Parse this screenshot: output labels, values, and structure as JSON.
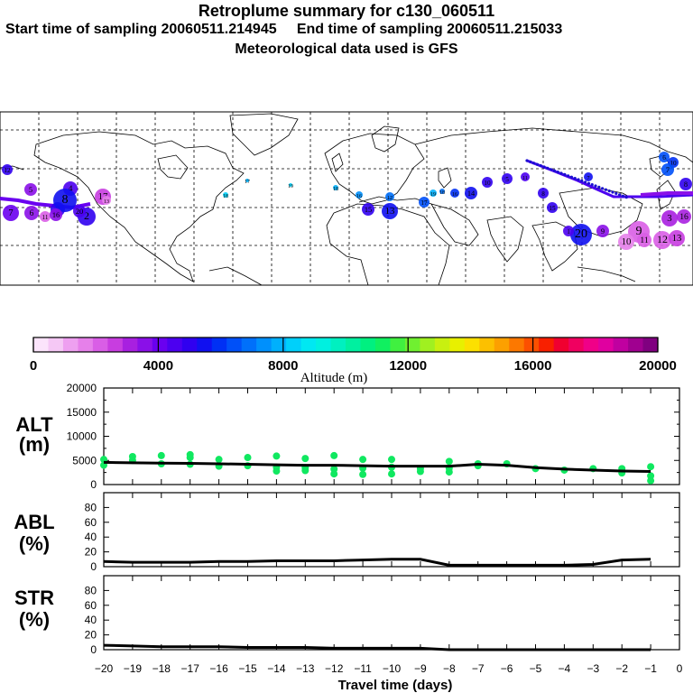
{
  "header": {
    "title": "Retroplume summary for c130_060511",
    "start_label": "Start time of sampling 20060511.214945",
    "end_label": "End time of sampling 20060511.215033",
    "met_label": "Meteorological data used is GFS"
  },
  "colorbar": {
    "ticks": [
      "0",
      "4000",
      "8000",
      "12000",
      "16000",
      "20000"
    ],
    "label": "Altitude (m)",
    "colors": [
      "#fbe4fb",
      "#f5c8f5",
      "#eea0f0",
      "#e680ea",
      "#d95ee6",
      "#c83de0",
      "#a820e0",
      "#8a10e8",
      "#6a00f0",
      "#4c00f0",
      "#3000f0",
      "#1010f0",
      "#0030f4",
      "#0050f8",
      "#0070fa",
      "#0090fc",
      "#00b0fc",
      "#00d0fa",
      "#00e8f2",
      "#00f0e0",
      "#00f0c0",
      "#00f0a0",
      "#00f080",
      "#10f060",
      "#40f040",
      "#70f030",
      "#a0f020",
      "#c8f010",
      "#e8f000",
      "#fce000",
      "#fcc000",
      "#fca000",
      "#fc7800",
      "#fc5000",
      "#f82000",
      "#f00030",
      "#f00060",
      "#f00088",
      "#e000a0",
      "#c000a0",
      "#a00090",
      "#800080"
    ]
  },
  "map_labels": {
    "left": [
      {
        "t": "12"
      },
      {
        "t": "5"
      },
      {
        "t": "4"
      },
      {
        "t": "3"
      },
      {
        "t": "7"
      },
      {
        "t": "6"
      },
      {
        "t": "2"
      },
      {
        "t": "17"
      },
      {
        "t": "11"
      },
      {
        "t": "8"
      },
      {
        "t": "20"
      },
      {
        "t": "16"
      },
      {
        "t": "13"
      }
    ],
    "mid": [
      {
        "t": "18"
      },
      {
        "t": "17"
      },
      {
        "t": "19"
      },
      {
        "t": "18"
      },
      {
        "t": "16"
      },
      {
        "t": "12"
      },
      {
        "t": "15"
      },
      {
        "t": "13"
      },
      {
        "t": "19"
      },
      {
        "t": "18"
      },
      {
        "t": "17"
      },
      {
        "t": "14"
      },
      {
        "t": "16"
      },
      {
        "t": "10"
      },
      {
        "t": "5"
      },
      {
        "t": "11"
      },
      {
        "t": "8"
      },
      {
        "t": "7"
      }
    ],
    "right": [
      {
        "t": "6"
      },
      {
        "t": "10"
      },
      {
        "t": "7"
      },
      {
        "t": "8"
      },
      {
        "t": "9"
      },
      {
        "t": "10"
      },
      {
        "t": "11"
      },
      {
        "t": "12"
      },
      {
        "t": "13"
      },
      {
        "t": "20"
      },
      {
        "t": "9"
      },
      {
        "t": "3"
      },
      {
        "t": "1"
      },
      {
        "t": "16"
      },
      {
        "t": "15"
      }
    ]
  },
  "panels": {
    "alt": {
      "label1": "ALT",
      "label2": "(m)",
      "yticks": [
        "20000",
        "15000",
        "10000",
        "5000",
        "0"
      ]
    },
    "abl": {
      "label1": "ABL",
      "label2": "(%)",
      "yticks": [
        "80",
        "60",
        "40",
        "20",
        "0"
      ]
    },
    "str": {
      "label1": "STR",
      "label2": "(%)",
      "yticks": [
        "80",
        "60",
        "40",
        "20",
        "0"
      ]
    }
  },
  "xaxis": {
    "ticks": [
      "−20",
      "−19",
      "−18",
      "−17",
      "−16",
      "−15",
      "−14",
      "−13",
      "−12",
      "−11",
      "−10",
      "−9",
      "−8",
      "−7",
      "−6",
      "−5",
      "−4",
      "−3",
      "−2",
      "−1",
      "0"
    ],
    "label": "Travel time (days)"
  },
  "chart_data": [
    {
      "type": "line",
      "title": "ALT (m)",
      "xlabel": "Travel time (days)",
      "ylabel": "ALT (m)",
      "xlim": [
        -20,
        0
      ],
      "ylim": [
        0,
        20000
      ],
      "x": [
        -20,
        -19,
        -18,
        -17,
        -16,
        -15,
        -14,
        -13,
        -12,
        -11,
        -10,
        -9,
        -8,
        -7,
        -6,
        -5,
        -4,
        -3,
        -2,
        -1
      ],
      "series": [
        {
          "name": "mean altitude",
          "values": [
            4600,
            4500,
            4450,
            4400,
            4300,
            4200,
            4100,
            4000,
            4000,
            3900,
            3800,
            3800,
            3800,
            4200,
            4000,
            3500,
            3200,
            3000,
            2800,
            2700
          ]
        },
        {
          "name": "cluster altitudes",
          "points": [
            [
              -20,
              4000
            ],
            [
              -20,
              5200
            ],
            [
              -19,
              5000
            ],
            [
              -19,
              5800
            ],
            [
              -18,
              4300
            ],
            [
              -18,
              6000
            ],
            [
              -17,
              4200
            ],
            [
              -17,
              5600
            ],
            [
              -17,
              6200
            ],
            [
              -16,
              3800
            ],
            [
              -16,
              5200
            ],
            [
              -15,
              3900
            ],
            [
              -15,
              5600
            ],
            [
              -14,
              3600
            ],
            [
              -14,
              2800
            ],
            [
              -14,
              5900
            ],
            [
              -13,
              3500
            ],
            [
              -13,
              2900
            ],
            [
              -13,
              5400
            ],
            [
              -12,
              3200
            ],
            [
              -12,
              2200
            ],
            [
              -12,
              6000
            ],
            [
              -11,
              3400
            ],
            [
              -11,
              2100
            ],
            [
              -11,
              5200
            ],
            [
              -10,
              3600
            ],
            [
              -10,
              2200
            ],
            [
              -10,
              5200
            ],
            [
              -9,
              3300
            ],
            [
              -9,
              2700
            ],
            [
              -8,
              3400
            ],
            [
              -8,
              2600
            ],
            [
              -8,
              4800
            ],
            [
              -7,
              4300
            ],
            [
              -7,
              3900
            ],
            [
              -6,
              4300
            ],
            [
              -5,
              3300
            ],
            [
              -4,
              3000
            ],
            [
              -3,
              3300
            ],
            [
              -2,
              2400
            ],
            [
              -2,
              3300
            ],
            [
              -1,
              1800
            ],
            [
              -1,
              800
            ],
            [
              -1,
              3700
            ]
          ]
        }
      ]
    },
    {
      "type": "line",
      "title": "ABL (%)",
      "xlabel": "Travel time (days)",
      "ylabel": "ABL (%)",
      "xlim": [
        -20,
        0
      ],
      "ylim": [
        0,
        100
      ],
      "x": [
        -20,
        -19,
        -18,
        -17,
        -16,
        -15,
        -14,
        -13,
        -12,
        -11,
        -10,
        -9,
        -8,
        -7,
        -6,
        -5,
        -4,
        -3,
        -2,
        -1
      ],
      "values": [
        7,
        6,
        6,
        6,
        7,
        7,
        8,
        8,
        8,
        9,
        10,
        10,
        2,
        2,
        2,
        2,
        2,
        3,
        9,
        10
      ]
    },
    {
      "type": "line",
      "title": "STR (%)",
      "xlabel": "Travel time (days)",
      "ylabel": "STR (%)",
      "xlim": [
        -20,
        0
      ],
      "ylim": [
        0,
        100
      ],
      "x": [
        -20,
        -19,
        -18,
        -17,
        -16,
        -15,
        -14,
        -13,
        -12,
        -11,
        -10,
        -9,
        -8,
        -7,
        -6,
        -5,
        -4,
        -3,
        -2,
        -1
      ],
      "values": [
        6,
        5,
        4,
        4,
        4,
        3,
        3,
        3,
        2,
        2,
        2,
        2,
        0,
        0,
        0,
        0,
        0,
        0,
        0,
        0
      ]
    }
  ]
}
